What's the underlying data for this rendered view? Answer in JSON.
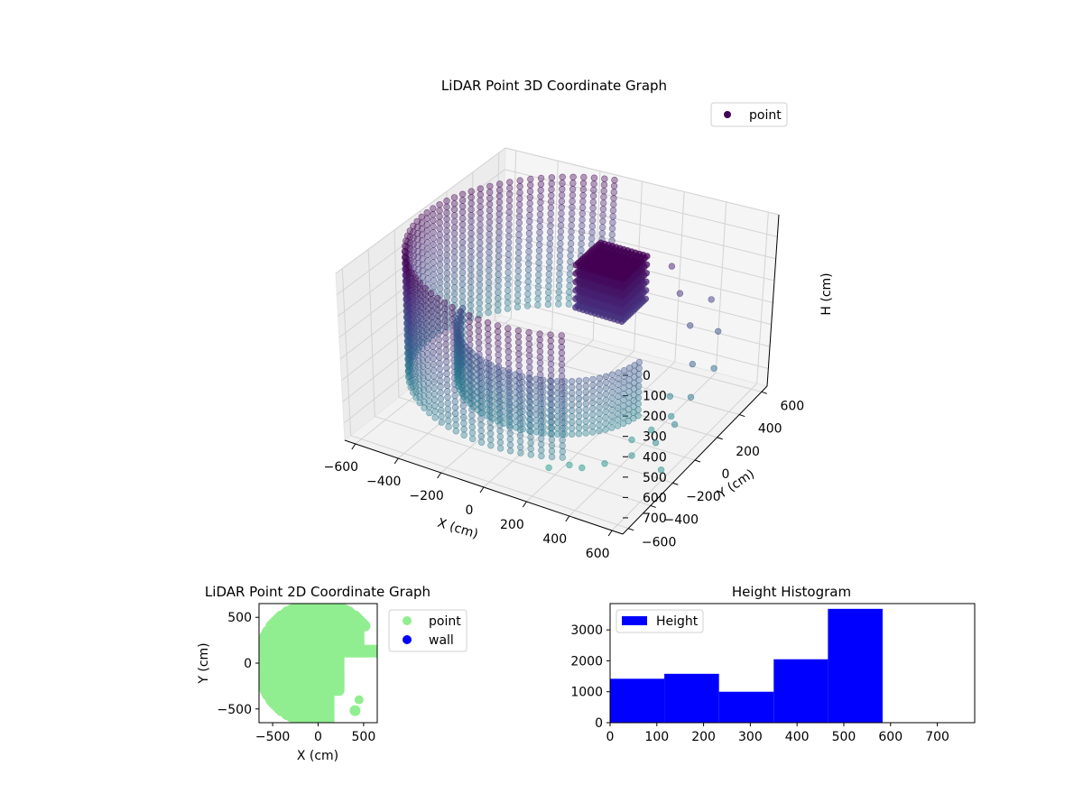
{
  "chart_data": [
    {
      "type": "scatter",
      "title": "LiDAR Point 3D Coordinate Graph",
      "xlabel": "X (cm)",
      "ylabel": "Y (cm)",
      "zlabel": "H (cm)",
      "xlim": [
        -650,
        650
      ],
      "ylim": [
        -650,
        650
      ],
      "zlim": [
        0,
        780
      ],
      "z_inverted": true,
      "x_ticks": [
        -600,
        -400,
        -200,
        0,
        200,
        400,
        600
      ],
      "y_ticks": [
        -600,
        -400,
        -200,
        0,
        200,
        400,
        600
      ],
      "z_ticks": [
        0,
        100,
        200,
        300,
        400,
        500,
        600,
        700
      ],
      "colormap": "viridis",
      "grid": true,
      "legend": {
        "position": "top-right",
        "entries": [
          {
            "label": "point",
            "color": "#440154"
          }
        ]
      },
      "series": [
        {
          "name": "point",
          "ring_clusters": [
            {
              "radius_cm": 620,
              "theta_from_deg": 100,
              "theta_to_deg": 300,
              "z_from_cm": 0,
              "z_to_cm": 600
            },
            {
              "radius_cm": 420,
              "theta_from_deg": 190,
              "theta_to_deg": 350,
              "z_from_cm": 350,
              "z_to_cm": 620
            }
          ],
          "dense_block": {
            "x_cm": [
              100,
              320
            ],
            "y_cm": [
              -50,
              160
            ],
            "z_cm": [
              0,
              220
            ]
          },
          "points": [
            {
              "x": 350,
              "y": 300,
              "z": 120
            },
            {
              "x": 420,
              "y": 250,
              "z": 200
            },
            {
              "x": 500,
              "y": 200,
              "z": 300
            },
            {
              "x": 560,
              "y": 120,
              "z": 420
            },
            {
              "x": 600,
              "y": 40,
              "z": 520
            },
            {
              "x": 580,
              "y": -60,
              "z": 600
            },
            {
              "x": 540,
              "y": -150,
              "z": 650
            },
            {
              "x": 470,
              "y": -230,
              "z": 690
            },
            {
              "x": 380,
              "y": -300,
              "z": 720
            },
            {
              "x": 300,
              "y": -350,
              "z": 740
            },
            {
              "x": 460,
              "y": 120,
              "z": 600
            },
            {
              "x": 500,
              "y": 60,
              "z": 650
            },
            {
              "x": 440,
              "y": 0,
              "z": 700
            },
            {
              "x": 390,
              "y": -80,
              "z": 720
            },
            {
              "x": 520,
              "y": 340,
              "z": 250
            },
            {
              "x": 580,
              "y": 300,
              "z": 360
            },
            {
              "x": 610,
              "y": 220,
              "z": 480
            },
            {
              "x": 230,
              "y": -330,
              "z": 760
            },
            {
              "x": 160,
              "y": -380,
              "z": 770
            },
            {
              "x": 620,
              "y": -250,
              "z": 700
            }
          ]
        }
      ]
    },
    {
      "type": "scatter",
      "title": "LiDAR Point 2D Coordinate Graph",
      "xlabel": "X (cm)",
      "ylabel": "Y (cm)",
      "xlim": [
        -650,
        650
      ],
      "ylim": [
        -650,
        650
      ],
      "x_ticks": [
        -500,
        0,
        500
      ],
      "y_ticks": [
        -500,
        0,
        500
      ],
      "legend": {
        "position": "outside-right",
        "entries": [
          {
            "label": "point",
            "color": "#90ee90"
          },
          {
            "label": "wall",
            "color": "#0000ff"
          }
        ]
      },
      "series": [
        {
          "name": "point",
          "color": "#90ee90",
          "coverage": "disk of radius ~650 cm centred at origin, sparse for x > 250 and y < 150"
        },
        {
          "name": "wall",
          "color": "#0000ff",
          "points": []
        }
      ]
    },
    {
      "type": "bar",
      "title": "Height Histogram",
      "xlabel": "",
      "ylabel": "",
      "xlim": [
        0,
        780
      ],
      "ylim": [
        0,
        3850
      ],
      "x_ticks": [
        0,
        100,
        200,
        300,
        400,
        500,
        600,
        700
      ],
      "y_ticks": [
        0,
        1000,
        2000,
        3000
      ],
      "legend": {
        "position": "top-left",
        "entries": [
          {
            "label": "Height",
            "color": "#0000ff"
          }
        ]
      },
      "series": [
        {
          "name": "Height",
          "color": "#0000ff",
          "bins": [
            {
              "x0": 0,
              "x1": 116,
              "count": 1420
            },
            {
              "x0": 116,
              "x1": 233,
              "count": 1580
            },
            {
              "x0": 233,
              "x1": 350,
              "count": 1000
            },
            {
              "x0": 350,
              "x1": 466,
              "count": 2050
            },
            {
              "x0": 466,
              "x1": 583,
              "count": 3680
            },
            {
              "x0": 583,
              "x1": 700,
              "count": 0
            },
            {
              "x0": 700,
              "x1": 780,
              "count": 0
            }
          ]
        }
      ]
    }
  ]
}
